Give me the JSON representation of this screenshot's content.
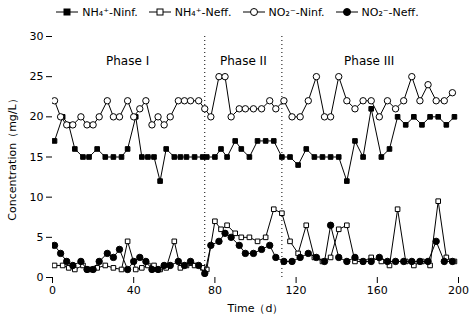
{
  "chart_data": {
    "type": "line",
    "xlabel": "Time（d）",
    "ylabel": "Concentration（mg/L）",
    "xlim": [
      0,
      200
    ],
    "ylim": [
      0,
      30
    ],
    "xticks": [
      0,
      40,
      80,
      120,
      160,
      200
    ],
    "yticks": [
      0,
      5,
      10,
      15,
      20,
      25,
      30
    ],
    "legend": "top",
    "series": [
      {
        "name": "NH₄⁺-Ninf.",
        "color": "black",
        "marker": "square",
        "line_style": "solid",
        "x": [
          1,
          5,
          8,
          11,
          15,
          18,
          22,
          26,
          30,
          34,
          37,
          41,
          44,
          47,
          50,
          53,
          56,
          60,
          63,
          66,
          70,
          74,
          76,
          80,
          83,
          86,
          90,
          93,
          97,
          101,
          105,
          109,
          113,
          117,
          121,
          125,
          129,
          133,
          137,
          141,
          145,
          149,
          153,
          157,
          162,
          166,
          170,
          174,
          178,
          182,
          186,
          190,
          194,
          198
        ],
        "values": [
          17,
          20,
          19,
          16,
          15,
          15,
          16,
          15,
          15,
          15,
          16,
          20,
          15,
          15,
          15,
          12,
          16,
          15,
          15,
          15,
          15,
          15,
          15,
          15,
          16,
          15,
          17,
          16,
          15,
          17,
          17,
          17,
          15,
          15,
          14,
          16,
          15,
          15,
          15,
          15,
          12,
          17,
          15,
          21,
          15,
          16,
          20,
          19,
          20,
          19,
          20,
          20,
          19,
          20
        ]
      },
      {
        "name": "NH₄⁺-Neff.",
        "color": "black",
        "marker": "open_square",
        "line_style": "solid",
        "x": [
          1,
          5,
          8,
          11,
          15,
          18,
          22,
          26,
          30,
          34,
          37,
          41,
          44,
          47,
          50,
          53,
          56,
          60,
          63,
          66,
          70,
          74,
          76,
          80,
          83,
          86,
          90,
          93,
          97,
          101,
          105,
          109,
          113,
          117,
          121,
          125,
          129,
          133,
          137,
          141,
          145,
          149,
          153,
          157,
          162,
          166,
          170,
          174,
          178,
          182,
          186,
          190,
          194,
          198
        ],
        "values": [
          1.5,
          1.5,
          1.2,
          1.0,
          1.5,
          1.0,
          1.2,
          1.5,
          1.2,
          1.0,
          4.5,
          1.0,
          1.2,
          1.5,
          1.5,
          1.0,
          1.2,
          4.5,
          1.2,
          1.5,
          1.5,
          1.2,
          1.0,
          7.0,
          6.0,
          6.5,
          5.5,
          5.0,
          5.0,
          4.5,
          5.0,
          8.5,
          8.0,
          4.5,
          3.0,
          6.5,
          2.5,
          2.0,
          2.5,
          6.0,
          6.5,
          2.0,
          2.0,
          2.5,
          2.0,
          1.5,
          8.5,
          2.0,
          1.5,
          2.0,
          1.5,
          9.5,
          2.5,
          2.0
        ]
      },
      {
        "name": "NO₂⁻-Ninf.",
        "color": "black",
        "marker": "open_circle",
        "line_style": "solid",
        "x": [
          1,
          4,
          7,
          10,
          14,
          17,
          20,
          23,
          27,
          30,
          33,
          37,
          40,
          43,
          46,
          49,
          52,
          55,
          58,
          62,
          65,
          68,
          72,
          75,
          78,
          82,
          85,
          88,
          92,
          95,
          99,
          103,
          107,
          110,
          114,
          118,
          122,
          126,
          130,
          134,
          137,
          141,
          145,
          149,
          153,
          157,
          161,
          165,
          169,
          173,
          177,
          181,
          185,
          189,
          193,
          197
        ],
        "values": [
          22,
          20,
          19,
          19,
          20,
          19,
          19,
          20,
          22,
          20,
          20,
          22,
          20,
          21,
          22,
          19,
          20,
          19,
          20,
          22,
          22,
          22,
          22,
          21,
          20,
          25,
          25,
          20,
          21,
          21,
          21,
          21,
          22,
          21,
          22,
          20,
          20,
          22,
          25,
          20,
          20,
          25,
          22,
          21,
          22,
          22,
          20,
          22,
          21,
          22,
          25,
          22,
          24,
          22,
          22,
          23
        ]
      },
      {
        "name": "NO₂⁻-Neff.",
        "color": "black",
        "marker": "circle",
        "line_style": "solid",
        "x": [
          1,
          4,
          7,
          10,
          14,
          17,
          20,
          23,
          27,
          30,
          33,
          37,
          40,
          43,
          46,
          49,
          52,
          55,
          58,
          62,
          65,
          68,
          72,
          75,
          78,
          82,
          85,
          88,
          92,
          95,
          99,
          103,
          107,
          110,
          114,
          118,
          122,
          126,
          130,
          134,
          137,
          141,
          145,
          149,
          153,
          157,
          161,
          165,
          169,
          173,
          177,
          181,
          185,
          189,
          193,
          197
        ],
        "values": [
          4,
          3,
          2,
          1.5,
          2,
          1,
          1,
          2,
          3,
          2.5,
          3.5,
          1,
          2,
          2.5,
          2,
          1,
          1,
          1.5,
          1.5,
          2,
          1.5,
          2,
          1.5,
          0.5,
          4,
          4.5,
          5.5,
          5,
          4,
          3,
          3,
          3.5,
          4,
          2.5,
          2,
          2,
          2.5,
          3,
          2.5,
          2,
          6.5,
          2.5,
          2,
          2.5,
          2,
          2,
          2.5,
          2,
          2,
          2,
          2,
          2,
          2,
          4.5,
          2,
          2
        ]
      }
    ],
    "vlines": [
      75,
      113
    ],
    "annotations": [
      {
        "text": "Phase I",
        "x": 37,
        "y": 27.5
      },
      {
        "text": "Phase II",
        "x": 94,
        "y": 27.5
      },
      {
        "text": "Phase III",
        "x": 156,
        "y": 27.5
      }
    ]
  }
}
